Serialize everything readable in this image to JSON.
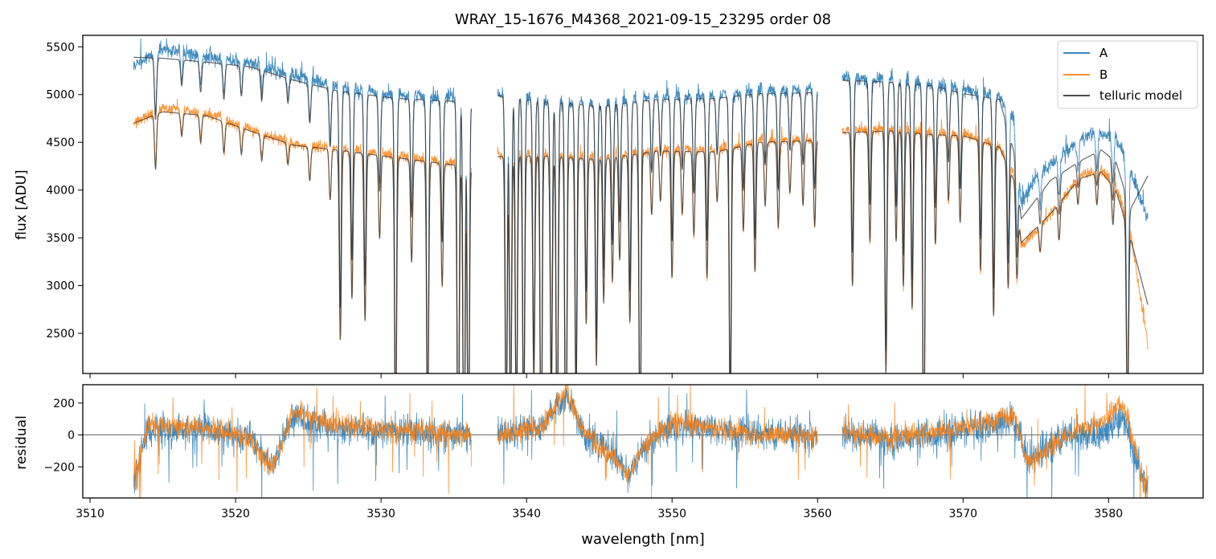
{
  "figure": {
    "title": "WRAY_15-1676_M4368_2021-09-15_23295  order 08"
  },
  "colors": {
    "A": "#1f77b4",
    "B": "#ff7f0e",
    "model": "#333333",
    "zero_line": "#555555"
  },
  "chart_data": [
    {
      "type": "line",
      "panel": "flux",
      "title": "WRAY_15-1676_M4368_2021-09-15_23295  order 08",
      "xlabel": "",
      "ylabel": "flux [ADU]",
      "xlim": [
        3509.5,
        3586.5
      ],
      "ylim": [
        2080,
        5620
      ],
      "yticks": [
        2500,
        3000,
        3500,
        4000,
        4500,
        5000,
        5500
      ],
      "xticks": [
        3510,
        3520,
        3530,
        3540,
        3550,
        3560,
        3570,
        3580
      ],
      "show_xtick_labels": false,
      "legend": {
        "placement": "top-right",
        "entries": [
          "A",
          "B",
          "telluric model"
        ]
      },
      "segments": [
        {
          "x0": 3513.0,
          "x1": 3536.2
        },
        {
          "x0": 3538.0,
          "x1": 3560.0
        },
        {
          "x0": 3561.7,
          "x1": 3582.7
        }
      ],
      "series": [
        {
          "name": "A",
          "continuum": [
            [
              3513.0,
              5300
            ],
            [
              3515.0,
              5480
            ],
            [
              3518.0,
              5400
            ],
            [
              3521.0,
              5330
            ],
            [
              3524.0,
              5200
            ],
            [
              3527.0,
              5080
            ],
            [
              3531.0,
              4990
            ],
            [
              3536.2,
              4960
            ],
            [
              3538.0,
              5000
            ],
            [
              3541.0,
              4940
            ],
            [
              3545.0,
              4900
            ],
            [
              3549.0,
              4980
            ],
            [
              3553.0,
              4990
            ],
            [
              3556.0,
              5040
            ],
            [
              3560.0,
              5050
            ],
            [
              3561.7,
              5180
            ],
            [
              3565.0,
              5160
            ],
            [
              3568.0,
              5110
            ],
            [
              3570.0,
              5040
            ],
            [
              3572.5,
              4980
            ],
            [
              3573.5,
              4750
            ],
            [
              3574.0,
              3850
            ],
            [
              3575.0,
              4150
            ],
            [
              3577.0,
              4400
            ],
            [
              3579.0,
              4600
            ],
            [
              3580.5,
              4550
            ],
            [
              3581.5,
              4200
            ],
            [
              3582.7,
              3700
            ]
          ]
        },
        {
          "name": "B",
          "continuum": [
            [
              3513.0,
              4700
            ],
            [
              3515.0,
              4860
            ],
            [
              3518.0,
              4800
            ],
            [
              3521.0,
              4640
            ],
            [
              3524.0,
              4480
            ],
            [
              3527.0,
              4440
            ],
            [
              3531.0,
              4360
            ],
            [
              3536.2,
              4260
            ],
            [
              3538.0,
              4370
            ],
            [
              3541.0,
              4380
            ],
            [
              3545.0,
              4340
            ],
            [
              3549.0,
              4430
            ],
            [
              3553.0,
              4420
            ],
            [
              3556.0,
              4520
            ],
            [
              3560.0,
              4540
            ],
            [
              3561.7,
              4620
            ],
            [
              3565.0,
              4640
            ],
            [
              3568.0,
              4600
            ],
            [
              3570.0,
              4590
            ],
            [
              3572.5,
              4470
            ],
            [
              3573.5,
              4150
            ],
            [
              3574.0,
              3400
            ],
            [
              3576.0,
              3750
            ],
            [
              3578.0,
              4150
            ],
            [
              3579.5,
              4210
            ],
            [
              3580.5,
              4050
            ],
            [
              3581.5,
              3550
            ],
            [
              3582.7,
              2400
            ]
          ]
        },
        {
          "name": "telluric model",
          "continuum": [
            [
              3513.0,
              5390
            ],
            [
              3515.0,
              5380
            ],
            [
              3518.0,
              5340
            ],
            [
              3521.0,
              5290
            ],
            [
              3524.0,
              5150
            ],
            [
              3527.0,
              5040
            ],
            [
              3531.0,
              4960
            ],
            [
              3536.2,
              4920
            ],
            [
              3538.0,
              4990
            ],
            [
              3541.0,
              4930
            ],
            [
              3545.0,
              4880
            ],
            [
              3549.0,
              4950
            ],
            [
              3553.0,
              4960
            ],
            [
              3556.0,
              5010
            ],
            [
              3560.0,
              5020
            ],
            [
              3561.7,
              5150
            ],
            [
              3565.0,
              5130
            ],
            [
              3568.0,
              5090
            ],
            [
              3570.0,
              5010
            ],
            [
              3572.5,
              4950
            ],
            [
              3573.5,
              4400
            ],
            [
              3574.0,
              3700
            ],
            [
              3576.0,
              4100
            ],
            [
              3578.0,
              4300
            ],
            [
              3579.5,
              4420
            ],
            [
              3580.5,
              4300
            ],
            [
              3581.5,
              3800
            ],
            [
              3582.7,
              4150
            ]
          ]
        }
      ],
      "lower_model": [
        [
          3513.0,
          4700
        ],
        [
          3515.0,
          4820
        ],
        [
          3518.0,
          4780
        ],
        [
          3521.0,
          4620
        ],
        [
          3524.0,
          4470
        ],
        [
          3527.0,
          4420
        ],
        [
          3531.0,
          4340
        ],
        [
          3536.2,
          4240
        ],
        [
          3538.0,
          4350
        ],
        [
          3541.0,
          4360
        ],
        [
          3545.0,
          4320
        ],
        [
          3549.0,
          4410
        ],
        [
          3553.0,
          4400
        ],
        [
          3556.0,
          4500
        ],
        [
          3560.0,
          4520
        ],
        [
          3561.7,
          4600
        ],
        [
          3565.0,
          4620
        ],
        [
          3568.0,
          4580
        ],
        [
          3570.0,
          4570
        ],
        [
          3572.5,
          4450
        ],
        [
          3573.5,
          4100
        ],
        [
          3574.0,
          3450
        ],
        [
          3576.0,
          3750
        ],
        [
          3578.0,
          4120
        ],
        [
          3579.5,
          4190
        ],
        [
          3580.5,
          4000
        ],
        [
          3581.5,
          3500
        ],
        [
          3582.7,
          2800
        ]
      ],
      "absorption_lines": [
        [
          3514.5,
          0.12
        ],
        [
          3516.3,
          0.05
        ],
        [
          3517.6,
          0.06
        ],
        [
          3519.2,
          0.07
        ],
        [
          3520.4,
          0.06
        ],
        [
          3521.8,
          0.06
        ],
        [
          3523.6,
          0.05
        ],
        [
          3525.1,
          0.08
        ],
        [
          3526.5,
          0.12
        ],
        [
          3527.2,
          0.45
        ],
        [
          3528.0,
          0.35
        ],
        [
          3528.9,
          0.4
        ],
        [
          3529.9,
          0.2
        ],
        [
          3531.0,
          0.7
        ],
        [
          3532.1,
          0.25
        ],
        [
          3533.2,
          0.7
        ],
        [
          3534.2,
          0.3
        ],
        [
          3535.3,
          0.85
        ],
        [
          3535.7,
          0.85
        ],
        [
          3536.0,
          0.8
        ],
        [
          3538.6,
          0.7
        ],
        [
          3538.9,
          0.7
        ],
        [
          3539.3,
          0.7
        ],
        [
          3539.8,
          0.7
        ],
        [
          3540.5,
          0.55
        ],
        [
          3541.0,
          0.8
        ],
        [
          3541.7,
          0.6
        ],
        [
          3542.1,
          0.75
        ],
        [
          3542.7,
          0.85
        ],
        [
          3543.4,
          0.6
        ],
        [
          3544.1,
          0.4
        ],
        [
          3544.8,
          0.5
        ],
        [
          3545.3,
          0.35
        ],
        [
          3545.9,
          0.3
        ],
        [
          3546.4,
          0.25
        ],
        [
          3547.1,
          0.4
        ],
        [
          3547.8,
          0.75
        ],
        [
          3548.6,
          0.15
        ],
        [
          3549.2,
          0.12
        ],
        [
          3550.0,
          0.3
        ],
        [
          3550.7,
          0.15
        ],
        [
          3551.5,
          0.2
        ],
        [
          3552.4,
          0.3
        ],
        [
          3553.1,
          0.12
        ],
        [
          3554.0,
          0.65
        ],
        [
          3554.9,
          0.2
        ],
        [
          3555.7,
          0.3
        ],
        [
          3556.4,
          0.15
        ],
        [
          3557.3,
          0.2
        ],
        [
          3558.1,
          0.12
        ],
        [
          3559.0,
          0.15
        ],
        [
          3559.8,
          0.2
        ],
        [
          3562.4,
          0.35
        ],
        [
          3563.6,
          0.25
        ],
        [
          3564.7,
          0.55
        ],
        [
          3565.4,
          0.25
        ],
        [
          3565.9,
          0.35
        ],
        [
          3566.5,
          0.4
        ],
        [
          3567.3,
          0.8
        ],
        [
          3568.1,
          0.25
        ],
        [
          3569.0,
          0.15
        ],
        [
          3569.8,
          0.2
        ],
        [
          3571.2,
          0.3
        ],
        [
          3572.1,
          0.4
        ],
        [
          3573.1,
          0.3
        ],
        [
          3573.7,
          0.2
        ],
        [
          3575.3,
          0.08
        ],
        [
          3576.6,
          0.1
        ],
        [
          3577.9,
          0.06
        ],
        [
          3579.2,
          0.08
        ],
        [
          3580.3,
          0.1
        ],
        [
          3581.3,
          0.6
        ]
      ]
    },
    {
      "type": "line",
      "panel": "residual",
      "xlabel": "wavelength [nm]",
      "ylabel": "residual",
      "xlim": [
        3509.5,
        3586.5
      ],
      "ylim": [
        -395,
        315
      ],
      "yticks": [
        -200,
        0,
        200
      ],
      "xticks": [
        3510,
        3520,
        3530,
        3540,
        3550,
        3560,
        3570,
        3580
      ],
      "xtick_labels": [
        "3510",
        "3520",
        "3530",
        "3540",
        "3550",
        "3560",
        "3570",
        "3580"
      ],
      "zero_line": 0,
      "series": [
        {
          "name": "A",
          "amplitude": 130,
          "trend": [
            [
              3513.0,
              -300
            ],
            [
              3514.0,
              40
            ],
            [
              3518.0,
              30
            ],
            [
              3521.0,
              -20
            ],
            [
              3522.5,
              -200
            ],
            [
              3524.0,
              120
            ],
            [
              3527.0,
              40
            ],
            [
              3536.0,
              0
            ],
            [
              3538.0,
              10
            ],
            [
              3541.0,
              40
            ],
            [
              3542.7,
              260
            ],
            [
              3544.0,
              0
            ],
            [
              3546.0,
              -120
            ],
            [
              3547.0,
              -250
            ],
            [
              3548.0,
              -80
            ],
            [
              3550.0,
              60
            ],
            [
              3553.0,
              40
            ],
            [
              3556.0,
              0
            ],
            [
              3560.0,
              0
            ],
            [
              3561.7,
              20
            ],
            [
              3565.0,
              -30
            ],
            [
              3568.0,
              0
            ],
            [
              3572.0,
              60
            ],
            [
              3573.5,
              100
            ],
            [
              3574.5,
              -150
            ],
            [
              3577.0,
              0
            ],
            [
              3579.5,
              0
            ],
            [
              3581.0,
              120
            ],
            [
              3582.7,
              -380
            ]
          ]
        },
        {
          "name": "B",
          "amplitude": 90,
          "trend": [
            [
              3513.0,
              -280
            ],
            [
              3514.0,
              60
            ],
            [
              3518.0,
              40
            ],
            [
              3521.0,
              -20
            ],
            [
              3522.5,
              -220
            ],
            [
              3524.0,
              150
            ],
            [
              3527.0,
              60
            ],
            [
              3536.0,
              0
            ],
            [
              3538.0,
              0
            ],
            [
              3541.0,
              50
            ],
            [
              3542.7,
              280
            ],
            [
              3544.0,
              10
            ],
            [
              3546.0,
              -150
            ],
            [
              3547.0,
              -280
            ],
            [
              3548.0,
              -60
            ],
            [
              3550.0,
              80
            ],
            [
              3553.0,
              40
            ],
            [
              3556.0,
              0
            ],
            [
              3560.0,
              0
            ],
            [
              3561.7,
              10
            ],
            [
              3565.0,
              -20
            ],
            [
              3568.0,
              20
            ],
            [
              3572.0,
              80
            ],
            [
              3573.5,
              120
            ],
            [
              3574.5,
              -180
            ],
            [
              3577.0,
              -10
            ],
            [
              3579.5,
              80
            ],
            [
              3581.0,
              200
            ],
            [
              3582.7,
              -380
            ]
          ]
        }
      ]
    }
  ]
}
